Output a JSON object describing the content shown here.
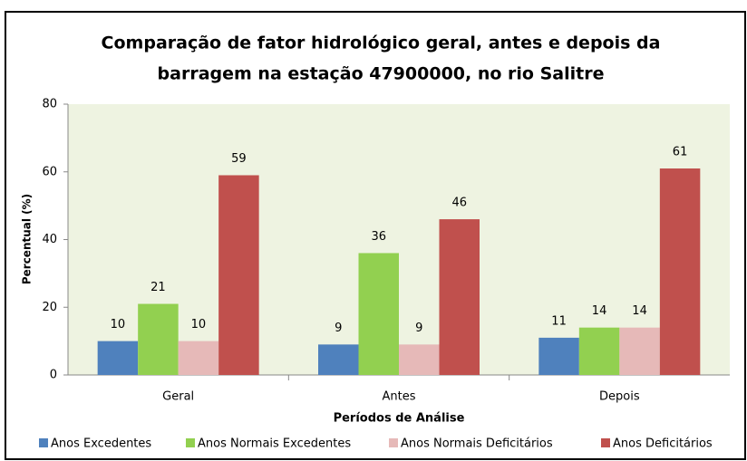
{
  "chart_data": {
    "type": "bar",
    "title": [
      "Comparação de fator hidrológico geral, antes e depois da",
      "barragem na estação 47900000, no rio Salitre"
    ],
    "x_label": "Períodos de Análise",
    "y_label": "Percentual (%)",
    "categories": [
      "Geral",
      "Antes",
      "Depois"
    ],
    "series": [
      {
        "name": "Anos Excedentes",
        "color": "#4f81bd",
        "values": [
          10,
          9,
          11
        ]
      },
      {
        "name": "Anos Normais Excedentes",
        "color": "#92d050",
        "values": [
          21,
          36,
          14
        ]
      },
      {
        "name": "Anos Normais Deficitários",
        "color": "#e6b9b8",
        "values": [
          10,
          9,
          14
        ]
      },
      {
        "name": "Anos Deficitários",
        "color": "#c0504d",
        "values": [
          59,
          46,
          61
        ]
      }
    ],
    "ylim": [
      0,
      80
    ],
    "yticks": [
      0,
      20,
      40,
      60,
      80
    ],
    "legend": "bottom"
  }
}
